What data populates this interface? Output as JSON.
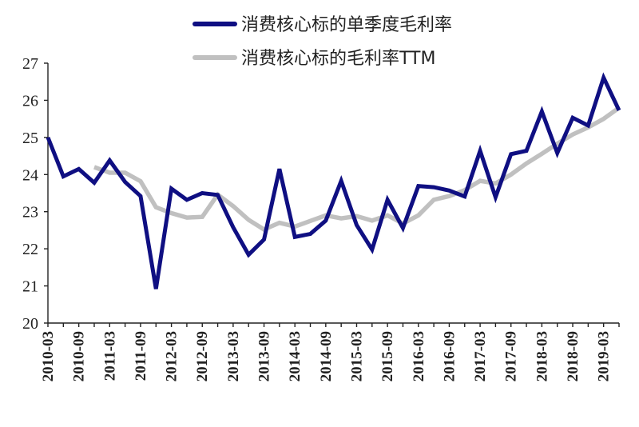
{
  "chart_data": {
    "type": "line",
    "title": "",
    "xlabel": "",
    "ylabel": "",
    "ylim": [
      20,
      27
    ],
    "yticks": [
      20,
      21,
      22,
      23,
      24,
      25,
      26,
      27
    ],
    "grid": false,
    "legend_position": "top-center",
    "x": [
      "2010-03",
      "2010-06",
      "2010-09",
      "2010-12",
      "2011-03",
      "2011-06",
      "2011-09",
      "2011-12",
      "2012-03",
      "2012-06",
      "2012-09",
      "2012-12",
      "2013-03",
      "2013-06",
      "2013-09",
      "2013-12",
      "2014-03",
      "2014-06",
      "2014-09",
      "2014-12",
      "2015-03",
      "2015-06",
      "2015-09",
      "2015-12",
      "2016-03",
      "2016-06",
      "2016-09",
      "2016-12",
      "2017-03",
      "2017-06",
      "2017-09",
      "2017-12",
      "2018-03",
      "2018-06",
      "2018-09",
      "2018-12",
      "2019-03",
      "2019-06"
    ],
    "xtick_labels": [
      "2010-03",
      "2010-09",
      "2011-03",
      "2011-09",
      "2012-03",
      "2012-09",
      "2013-03",
      "2013-09",
      "2014-03",
      "2014-09",
      "2015-03",
      "2015-09",
      "2016-03",
      "2016-09",
      "2017-03",
      "2017-09",
      "2018-03",
      "2018-09",
      "2019-03"
    ],
    "series": [
      {
        "name": "消费核心标的单季度毛利率",
        "color": "#0f0f82",
        "values": [
          25.0,
          23.95,
          24.15,
          23.78,
          24.38,
          23.8,
          23.42,
          20.92,
          23.62,
          23.32,
          23.5,
          23.45,
          22.58,
          21.84,
          22.25,
          24.15,
          22.32,
          22.4,
          22.76,
          23.83,
          22.64,
          21.98,
          23.32,
          22.56,
          23.69,
          23.66,
          23.57,
          23.41,
          24.64,
          23.39,
          24.55,
          24.64,
          25.7,
          24.58,
          25.53,
          25.32,
          26.61,
          25.73
        ]
      },
      {
        "name": "消费核心标的毛利率TTM",
        "color": "#c0c0c0",
        "values": [
          null,
          null,
          null,
          24.2,
          24.05,
          24.05,
          23.82,
          23.12,
          22.96,
          22.84,
          22.86,
          23.46,
          23.15,
          22.78,
          22.52,
          22.7,
          22.6,
          22.75,
          22.9,
          22.82,
          22.88,
          22.76,
          22.9,
          22.68,
          22.9,
          23.32,
          23.42,
          23.58,
          23.83,
          23.76,
          24.0,
          24.3,
          24.56,
          24.83,
          25.08,
          25.27,
          25.5,
          25.8
        ]
      }
    ]
  }
}
